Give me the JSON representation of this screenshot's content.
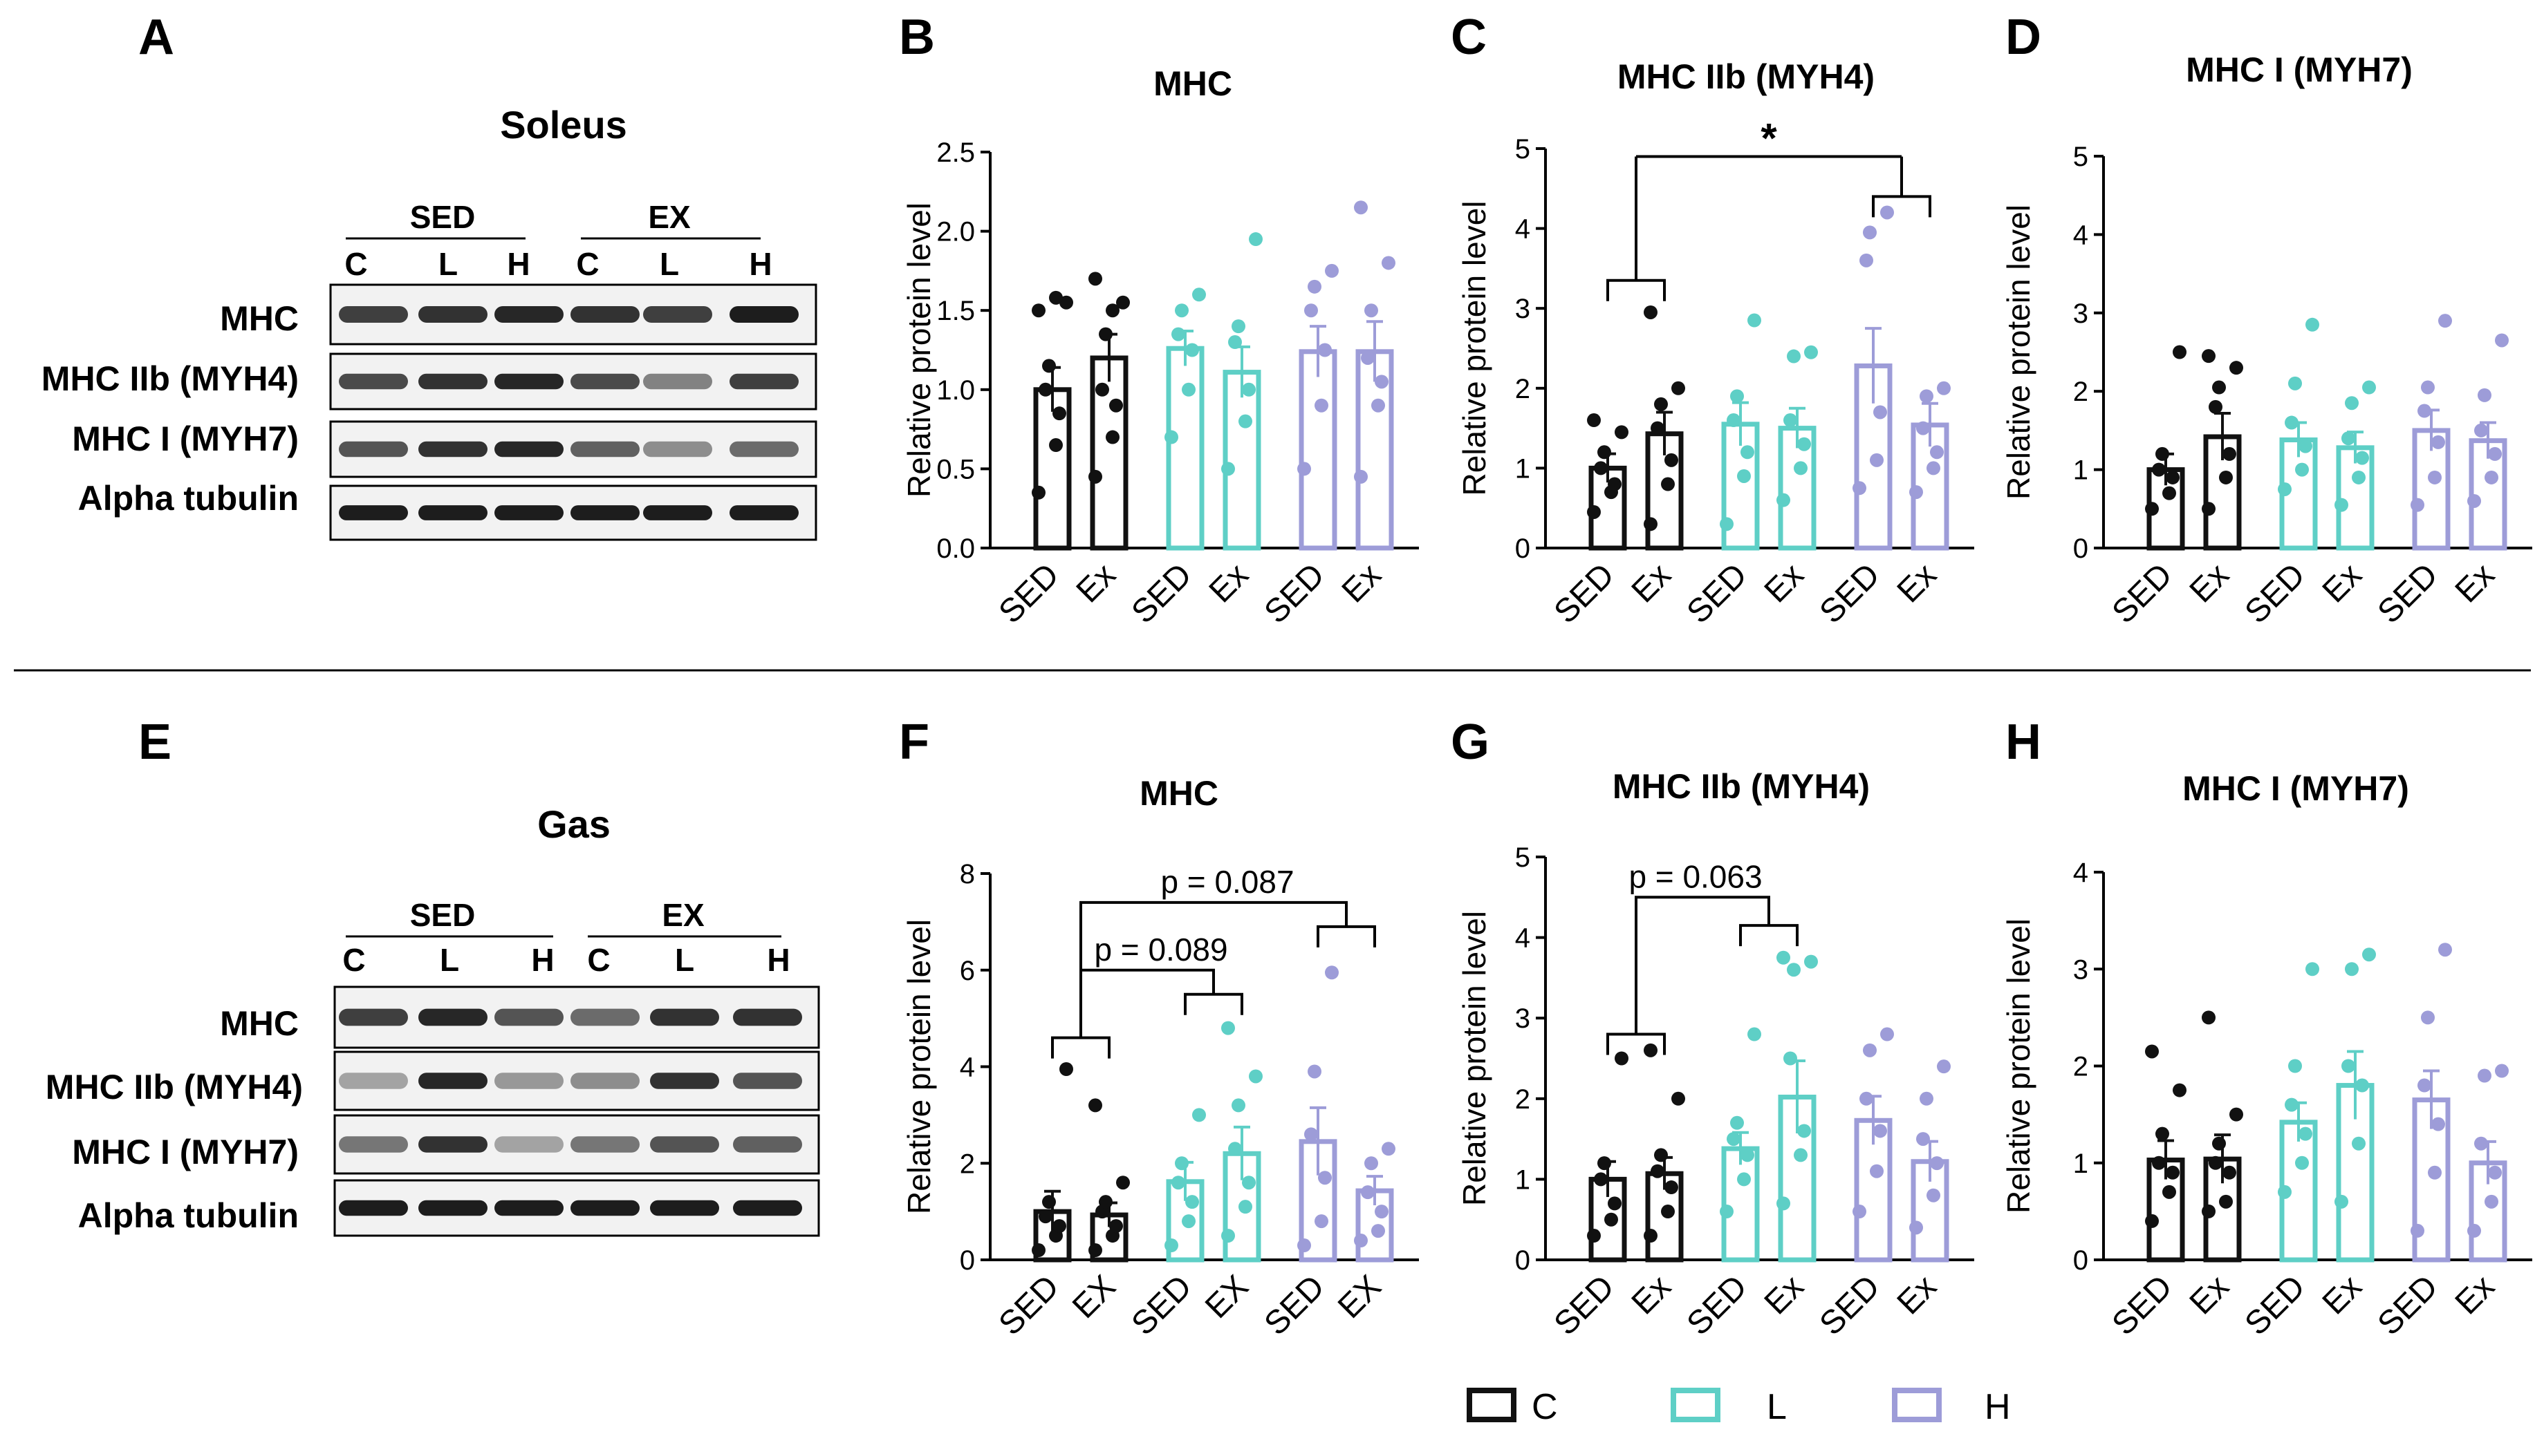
{
  "colors": {
    "C": "#111111",
    "L": "#5ecfc6",
    "H": "#9d9cd8"
  },
  "panel_labels": {
    "A": "A",
    "B": "B",
    "C": "C",
    "D": "D",
    "E": "E",
    "F": "F",
    "G": "G",
    "H": "H"
  },
  "blot_top": {
    "tissue": "Soleus",
    "groups": [
      "SED",
      "EX"
    ],
    "lanes": [
      "C",
      "L",
      "H",
      "C",
      "L",
      "H"
    ],
    "rows": [
      "MHC",
      "MHC IIb (MYH4)",
      "MHC I (MYH7)",
      "Alpha tubulin"
    ]
  },
  "blot_bottom": {
    "tissue": "Gas",
    "groups": [
      "SED",
      "EX"
    ],
    "lanes": [
      "C",
      "L",
      "H",
      "C",
      "L",
      "H"
    ],
    "rows": [
      "MHC",
      "MHC IIb (MYH4)",
      "MHC I (MYH7)",
      "Alpha tubulin"
    ]
  },
  "legend": [
    {
      "label": "C",
      "group": "C"
    },
    {
      "label": "L",
      "group": "L"
    },
    {
      "label": "H",
      "group": "H"
    }
  ],
  "chart_data": [
    {
      "panel": "B",
      "type": "bar",
      "title": "MHC",
      "ylabel": "Relative protein level",
      "ylim": [
        0,
        2.5
      ],
      "yticks": [
        "0.0",
        "0.5",
        "1.0",
        "1.5",
        "2.0",
        "2.5"
      ],
      "categories": [
        "SED",
        "Ex",
        "SED",
        "Ex",
        "SED",
        "Ex"
      ],
      "groups": [
        "C",
        "C",
        "L",
        "L",
        "H",
        "H"
      ],
      "values": [
        1.0,
        1.2,
        1.26,
        1.11,
        1.24,
        1.24
      ],
      "errors": [
        0.14,
        0.15,
        0.11,
        0.16,
        0.16,
        0.19
      ],
      "points": [
        [
          0.35,
          0.65,
          0.85,
          1.0,
          1.15,
          1.55,
          1.5,
          1.58
        ],
        [
          0.45,
          0.7,
          0.9,
          1.0,
          1.35,
          1.55,
          1.7,
          1.5
        ],
        [
          0.7,
          1.0,
          1.25,
          1.35,
          1.5,
          1.6
        ],
        [
          0.5,
          0.8,
          1.0,
          1.3,
          1.4,
          1.95
        ],
        [
          0.5,
          0.9,
          1.25,
          1.5,
          1.65,
          1.75
        ],
        [
          0.45,
          0.9,
          1.05,
          1.2,
          1.5,
          1.8,
          2.15
        ]
      ],
      "annotations": []
    },
    {
      "panel": "C",
      "type": "bar",
      "title": "MHC IIb (MYH4)",
      "ylabel": "Relative protein level",
      "ylim": [
        0,
        5
      ],
      "yticks": [
        "0",
        "1",
        "2",
        "3",
        "4",
        "5"
      ],
      "categories": [
        "SED",
        "Ex",
        "SED",
        "Ex",
        "SED",
        "Ex"
      ],
      "groups": [
        "C",
        "C",
        "L",
        "L",
        "H",
        "H"
      ],
      "values": [
        1.0,
        1.43,
        1.55,
        1.5,
        2.28,
        1.54
      ],
      "errors": [
        0.18,
        0.27,
        0.27,
        0.25,
        0.47,
        0.27
      ],
      "points": [
        [
          0.45,
          0.7,
          0.8,
          1.0,
          1.2,
          1.45,
          1.6
        ],
        [
          0.3,
          0.8,
          1.1,
          1.5,
          1.8,
          2.0,
          2.95
        ],
        [
          0.3,
          0.9,
          1.2,
          1.6,
          1.9,
          2.85
        ],
        [
          0.6,
          1.0,
          1.3,
          1.6,
          2.4,
          2.45
        ],
        [
          0.75,
          1.1,
          1.7,
          3.6,
          3.95,
          4.2
        ],
        [
          0.7,
          1.0,
          1.2,
          1.5,
          1.9,
          2.0
        ]
      ],
      "annotations": [
        {
          "text": "*"
        }
      ]
    },
    {
      "panel": "D",
      "type": "bar",
      "title": "MHC I (MYH7)",
      "ylabel": "Relative protein level",
      "ylim": [
        0,
        5
      ],
      "yticks": [
        "0",
        "1",
        "2",
        "3",
        "4",
        "5"
      ],
      "categories": [
        "SED",
        "Ex",
        "SED",
        "Ex",
        "SED",
        "Ex"
      ],
      "groups": [
        "C",
        "C",
        "L",
        "L",
        "H",
        "H"
      ],
      "values": [
        1.0,
        1.42,
        1.38,
        1.28,
        1.5,
        1.37
      ],
      "errors": [
        0.2,
        0.3,
        0.22,
        0.2,
        0.26,
        0.23
      ],
      "points": [
        [
          0.5,
          0.7,
          0.9,
          1.0,
          1.2,
          2.5
        ],
        [
          0.5,
          0.9,
          1.2,
          1.8,
          2.05,
          2.3,
          2.45
        ],
        [
          0.75,
          1.0,
          1.3,
          1.6,
          2.1,
          2.85
        ],
        [
          0.55,
          0.9,
          1.15,
          1.4,
          1.85,
          2.05
        ],
        [
          0.55,
          0.9,
          1.35,
          1.75,
          2.05,
          2.9
        ],
        [
          0.6,
          0.9,
          1.2,
          1.5,
          1.95,
          2.65
        ]
      ],
      "annotations": []
    },
    {
      "panel": "F",
      "type": "bar",
      "title": "MHC",
      "ylabel": "Relative protein level",
      "ylim": [
        0,
        8
      ],
      "yticks": [
        "0",
        "2",
        "4",
        "6",
        "8"
      ],
      "categories": [
        "SED",
        "EX",
        "SED",
        "EX",
        "SED",
        "EX"
      ],
      "groups": [
        "C",
        "C",
        "L",
        "L",
        "H",
        "H"
      ],
      "values": [
        1.0,
        0.93,
        1.62,
        2.2,
        2.45,
        1.43
      ],
      "errors": [
        0.42,
        0.25,
        0.4,
        0.55,
        0.7,
        0.3
      ],
      "points": [
        [
          0.2,
          0.5,
          0.7,
          0.9,
          1.2,
          3.95
        ],
        [
          0.2,
          0.5,
          0.7,
          1.0,
          1.2,
          1.6,
          3.2
        ],
        [
          0.3,
          0.8,
          1.2,
          1.6,
          2.0,
          3.0
        ],
        [
          0.5,
          1.1,
          1.6,
          2.3,
          3.2,
          3.8,
          4.8
        ],
        [
          0.3,
          0.8,
          1.7,
          2.6,
          3.9,
          5.95
        ],
        [
          0.4,
          0.6,
          1.0,
          1.4,
          2.0,
          2.3
        ]
      ],
      "annotations": [
        {
          "text": "p = 0.087"
        },
        {
          "text": "p = 0.089"
        }
      ]
    },
    {
      "panel": "G",
      "type": "bar",
      "title": "MHC IIb (MYH4)",
      "ylabel": "Relative protein level",
      "ylim": [
        0,
        5
      ],
      "yticks": [
        "0",
        "1",
        "2",
        "3",
        "4",
        "5"
      ],
      "categories": [
        "SED",
        "Ex",
        "SED",
        "Ex",
        "SED",
        "Ex"
      ],
      "groups": [
        "C",
        "C",
        "L",
        "L",
        "H",
        "H"
      ],
      "values": [
        1.0,
        1.07,
        1.38,
        2.02,
        1.73,
        1.22
      ],
      "errors": [
        0.22,
        0.2,
        0.2,
        0.45,
        0.3,
        0.25
      ],
      "points": [
        [
          0.3,
          0.5,
          0.7,
          1.0,
          1.2,
          2.5
        ],
        [
          0.3,
          0.6,
          0.9,
          1.1,
          1.3,
          2.0,
          2.6
        ],
        [
          0.6,
          1.0,
          1.3,
          1.5,
          1.7,
          2.8
        ],
        [
          0.7,
          1.3,
          1.6,
          2.5,
          3.6,
          3.7,
          3.75
        ],
        [
          0.6,
          1.1,
          1.6,
          2.0,
          2.6,
          2.8
        ],
        [
          0.4,
          0.8,
          1.2,
          1.5,
          2.0,
          2.4
        ]
      ],
      "annotations": [
        {
          "text": "p = 0.063"
        }
      ]
    },
    {
      "panel": "H",
      "type": "bar",
      "title": "MHC I (MYH7)",
      "ylabel": "Relative protein level",
      "ylim": [
        0,
        4
      ],
      "yticks": [
        "0",
        "1",
        "2",
        "3",
        "4"
      ],
      "categories": [
        "SED",
        "Ex",
        "SED",
        "Ex",
        "SED",
        "Ex"
      ],
      "groups": [
        "C",
        "C",
        "L",
        "L",
        "H",
        "H"
      ],
      "values": [
        1.03,
        1.04,
        1.42,
        1.8,
        1.65,
        1.0
      ],
      "errors": [
        0.2,
        0.25,
        0.2,
        0.35,
        0.3,
        0.22
      ],
      "points": [
        [
          0.4,
          0.7,
          0.9,
          1.0,
          1.3,
          1.75,
          2.15
        ],
        [
          0.5,
          0.6,
          0.9,
          1.0,
          1.2,
          1.5,
          2.5
        ],
        [
          0.7,
          1.0,
          1.3,
          1.6,
          2.0,
          3.0
        ],
        [
          0.6,
          1.2,
          1.8,
          2.0,
          3.0,
          3.15
        ],
        [
          0.3,
          0.9,
          1.4,
          1.8,
          2.5,
          3.2
        ],
        [
          0.3,
          0.6,
          0.9,
          1.2,
          1.9,
          1.95
        ]
      ],
      "annotations": []
    }
  ]
}
